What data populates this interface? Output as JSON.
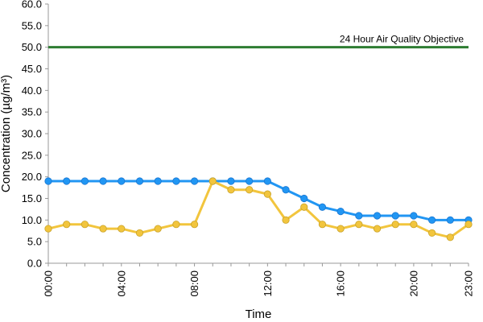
{
  "chart_data": {
    "type": "line",
    "title": "",
    "xlabel": "Time",
    "ylabel": "Concentration (µg/m³)",
    "ylim": [
      0,
      60
    ],
    "y_ticks": [
      "0.0",
      "5.0",
      "10.0",
      "15.0",
      "20.0",
      "25.0",
      "30.0",
      "35.0",
      "40.0",
      "45.0",
      "50.0",
      "55.0",
      "60.0"
    ],
    "x": [
      "00:00",
      "01:00",
      "02:00",
      "03:00",
      "04:00",
      "05:00",
      "06:00",
      "07:00",
      "08:00",
      "09:00",
      "10:00",
      "11:00",
      "12:00",
      "13:00",
      "14:00",
      "15:00",
      "16:00",
      "17:00",
      "18:00",
      "19:00",
      "20:00",
      "21:00",
      "22:00",
      "23:00"
    ],
    "x_tick_labels": [
      "00:00",
      "04:00",
      "08:00",
      "12:00",
      "16:00",
      "20:00",
      "23:00"
    ],
    "series": [
      {
        "color": "#2196F3",
        "values": [
          19,
          19,
          19,
          19,
          19,
          19,
          19,
          19,
          19,
          19,
          19,
          19,
          19,
          17,
          15,
          13,
          12,
          11,
          11,
          11,
          11,
          10,
          10,
          10
        ]
      },
      {
        "color": "#F2C53D",
        "values": [
          8,
          9,
          9,
          8,
          8,
          7,
          8,
          9,
          9,
          19,
          17,
          17,
          16,
          10,
          13,
          9,
          8,
          9,
          8,
          9,
          9,
          7,
          6,
          9
        ]
      }
    ],
    "reference_line": {
      "value": 50,
      "label": "24 Hour Air Quality Objective",
      "color": "#2E7D32"
    },
    "grid": false,
    "legend": "none"
  }
}
